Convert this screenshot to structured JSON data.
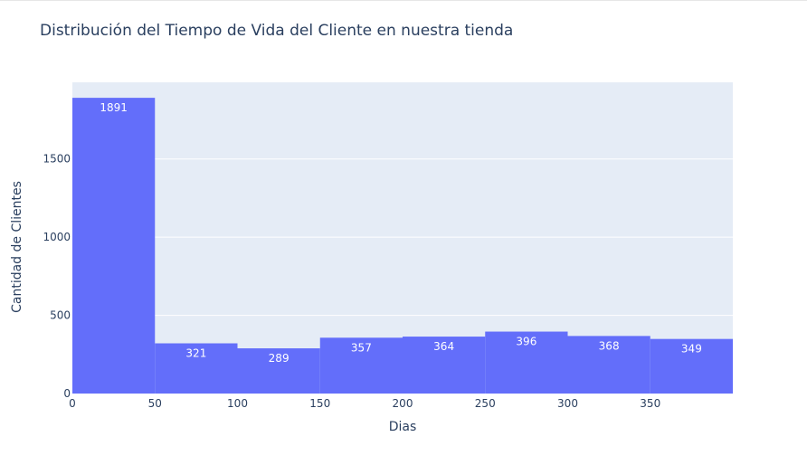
{
  "chart_data": {
    "type": "bar",
    "title": "Distribución del Tiempo de Vida del Cliente en nuestra tienda",
    "xlabel": "Dias",
    "ylabel": "Cantidad de Clientes",
    "bins": [
      {
        "start": 0,
        "end": 50,
        "value": 1891
      },
      {
        "start": 50,
        "end": 100,
        "value": 321
      },
      {
        "start": 100,
        "end": 150,
        "value": 289
      },
      {
        "start": 150,
        "end": 200,
        "value": 357
      },
      {
        "start": 200,
        "end": 250,
        "value": 364
      },
      {
        "start": 250,
        "end": 300,
        "value": 396
      },
      {
        "start": 300,
        "end": 350,
        "value": 368
      },
      {
        "start": 350,
        "end": 400,
        "value": 349
      }
    ],
    "xlim": [
      0,
      400
    ],
    "ylim": [
      0,
      1990
    ],
    "xticks": [
      0,
      50,
      100,
      150,
      200,
      250,
      300,
      350
    ],
    "yticks": [
      0,
      500,
      1000,
      1500
    ],
    "grid": true,
    "colors": {
      "bar": "#636efa",
      "plot_bg": "#e5ecf6",
      "grid": "#ffffff",
      "text": "#2a3f5f"
    }
  }
}
